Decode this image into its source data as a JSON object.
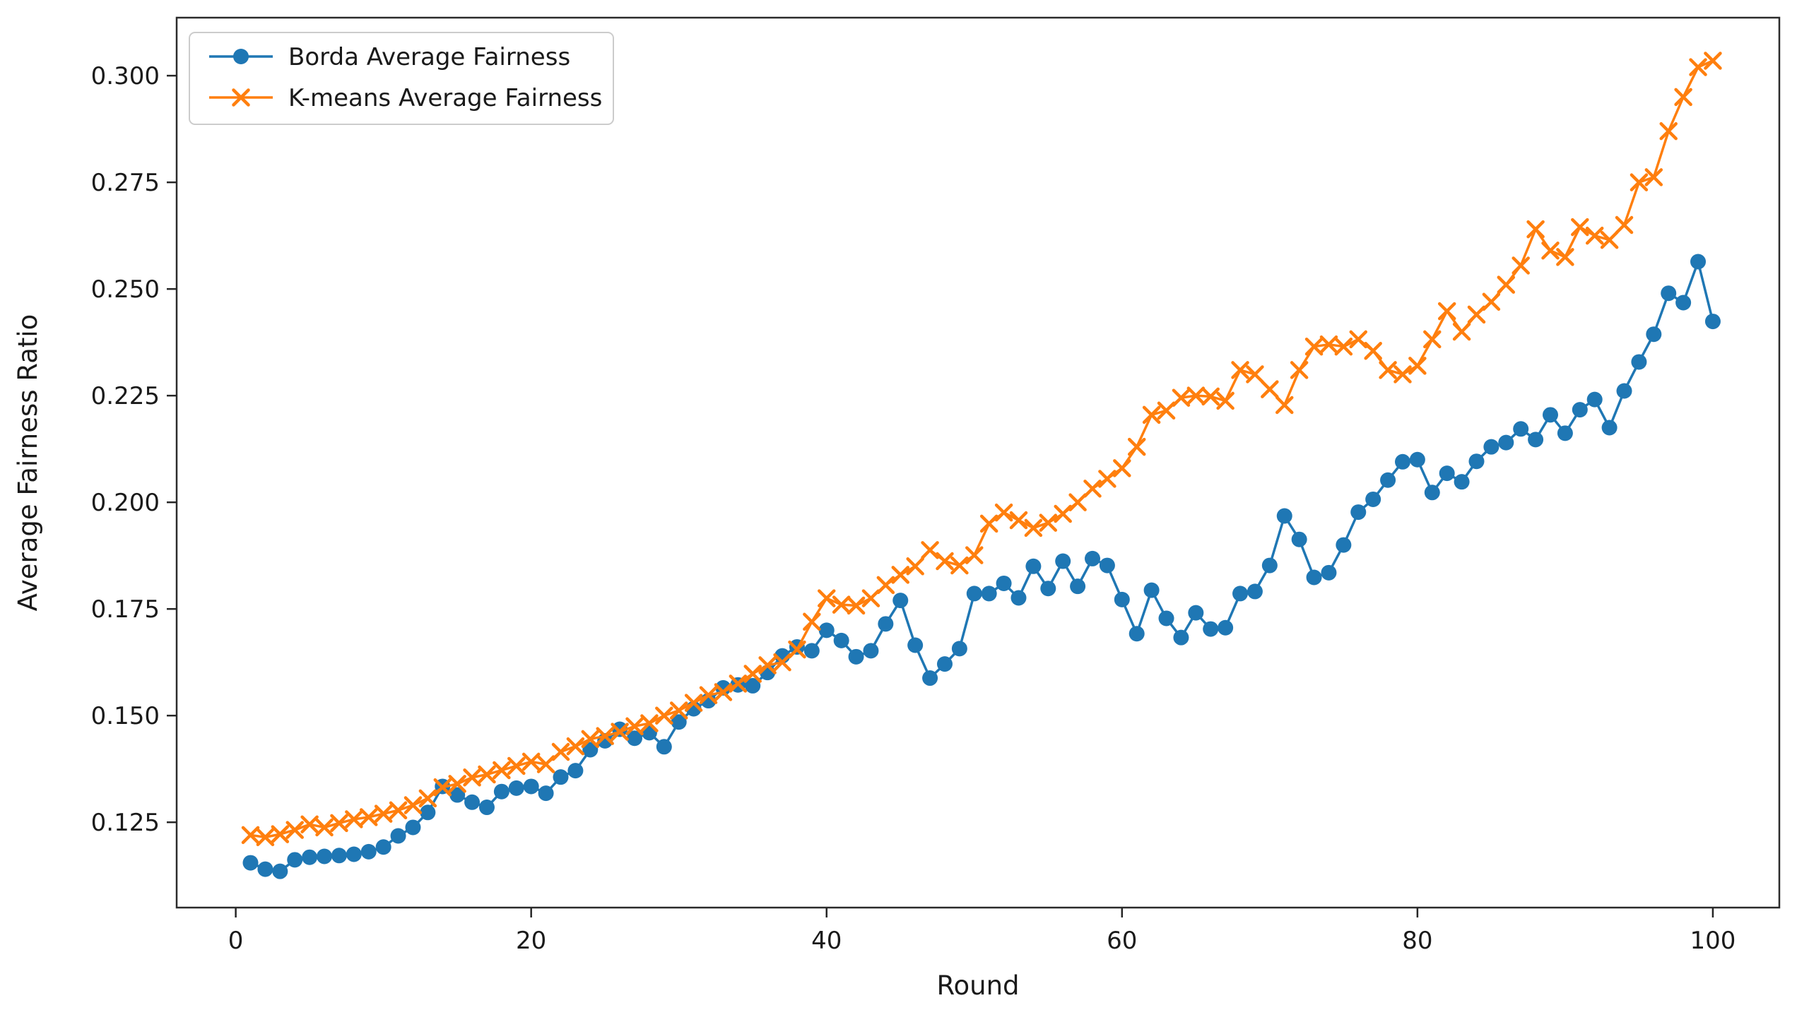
{
  "chart_data": {
    "type": "line",
    "title": "",
    "xlabel": "Round",
    "ylabel": "Average Fairness Ratio",
    "xlim": [
      -4.0,
      104.5
    ],
    "ylim": [
      0.105,
      0.3136
    ],
    "x_ticks": [
      0,
      20,
      40,
      60,
      80,
      100
    ],
    "y_ticks": [
      0.125,
      0.15,
      0.175,
      0.2,
      0.225,
      0.25,
      0.275,
      0.3
    ],
    "grid": false,
    "legend_position": "upper-left",
    "x": [
      1,
      2,
      3,
      4,
      5,
      6,
      7,
      8,
      9,
      10,
      11,
      12,
      13,
      14,
      15,
      16,
      17,
      18,
      19,
      20,
      21,
      22,
      23,
      24,
      25,
      26,
      27,
      28,
      29,
      30,
      31,
      32,
      33,
      34,
      35,
      36,
      37,
      38,
      39,
      40,
      41,
      42,
      43,
      44,
      45,
      46,
      47,
      48,
      49,
      50,
      51,
      52,
      53,
      54,
      55,
      56,
      57,
      58,
      59,
      60,
      61,
      62,
      63,
      64,
      65,
      66,
      67,
      68,
      69,
      70,
      71,
      72,
      73,
      74,
      75,
      76,
      77,
      78,
      79,
      80,
      81,
      82,
      83,
      84,
      85,
      86,
      87,
      88,
      89,
      90,
      91,
      92,
      93,
      94,
      95,
      96,
      97,
      98,
      99,
      100
    ],
    "series": [
      {
        "name": "Borda Average Fairness",
        "color": "#1f77b4",
        "marker": "circle",
        "values": [
          0.1155,
          0.114,
          0.1135,
          0.1162,
          0.1168,
          0.117,
          0.1172,
          0.1175,
          0.1181,
          0.1192,
          0.1218,
          0.1238,
          0.1273,
          0.1334,
          0.1314,
          0.1297,
          0.1285,
          0.1322,
          0.133,
          0.1334,
          0.1318,
          0.1356,
          0.1371,
          0.142,
          0.1441,
          0.1468,
          0.1447,
          0.146,
          0.1427,
          0.1485,
          0.1516,
          0.1535,
          0.1565,
          0.1572,
          0.157,
          0.1601,
          0.164,
          0.1661,
          0.1652,
          0.17,
          0.1676,
          0.1638,
          0.1652,
          0.1715,
          0.177,
          0.1665,
          0.1588,
          0.1621,
          0.1657,
          0.1786,
          0.1786,
          0.181,
          0.1776,
          0.185,
          0.1798,
          0.1862,
          0.1803,
          0.1868,
          0.1852,
          0.1772,
          0.1692,
          0.1794,
          0.1728,
          0.1683,
          0.1741,
          0.1703,
          0.1706,
          0.1786,
          0.1791,
          0.1852,
          0.1968,
          0.1913,
          0.1824,
          0.1835,
          0.19,
          0.1977,
          0.2007,
          0.2052,
          0.2095,
          0.21,
          0.2023,
          0.2068,
          0.2048,
          0.2096,
          0.213,
          0.214,
          0.2172,
          0.2147,
          0.2205,
          0.2162,
          0.2217,
          0.2241,
          0.2175,
          0.2261,
          0.2329,
          0.2394,
          0.249,
          0.2468,
          0.2564,
          0.2424
        ]
      },
      {
        "name": "K-means Average Fairness",
        "color": "#ff7f0e",
        "marker": "x",
        "values": [
          0.122,
          0.1215,
          0.1222,
          0.1232,
          0.1245,
          0.1238,
          0.1248,
          0.1257,
          0.1262,
          0.127,
          0.1278,
          0.129,
          0.1306,
          0.1332,
          0.134,
          0.1355,
          0.1362,
          0.1372,
          0.1382,
          0.1392,
          0.1386,
          0.1415,
          0.1428,
          0.1445,
          0.1452,
          0.1462,
          0.1475,
          0.1482,
          0.15,
          0.1512,
          0.153,
          0.1548,
          0.1555,
          0.1575,
          0.1598,
          0.1618,
          0.1625,
          0.1655,
          0.172,
          0.1775,
          0.176,
          0.1758,
          0.1775,
          0.1806,
          0.183,
          0.185,
          0.1888,
          0.1862,
          0.1852,
          0.1876,
          0.195,
          0.1976,
          0.1958,
          0.194,
          0.1952,
          0.1973,
          0.2,
          0.2032,
          0.2055,
          0.208,
          0.213,
          0.2205,
          0.2215,
          0.2245,
          0.225,
          0.2248,
          0.2238,
          0.231,
          0.23,
          0.2265,
          0.2228,
          0.231,
          0.2365,
          0.237,
          0.2365,
          0.2382,
          0.2355,
          0.231,
          0.23,
          0.232,
          0.2382,
          0.2448,
          0.24,
          0.244,
          0.247,
          0.251,
          0.2555,
          0.264,
          0.259,
          0.2575,
          0.2645,
          0.2625,
          0.2615,
          0.265,
          0.275,
          0.2762,
          0.287,
          0.295,
          0.302,
          0.3035
        ]
      }
    ],
    "colors": {
      "spine": "#2b2b2b",
      "tick": "#262626",
      "label": "#1a1a1a",
      "legend_border": "#cccccc",
      "legend_bg": "#ffffff"
    }
  }
}
